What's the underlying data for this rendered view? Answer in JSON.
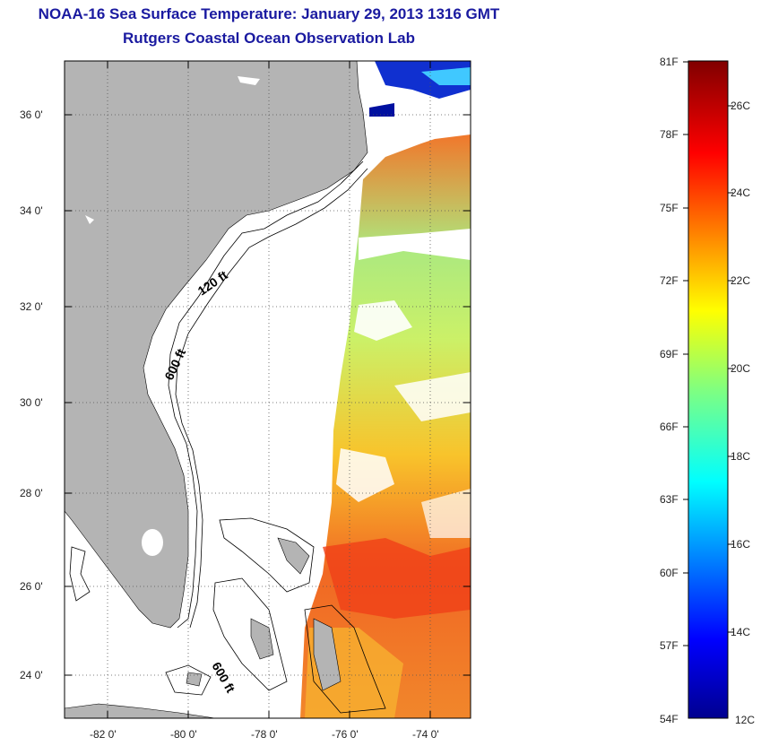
{
  "title": {
    "line1": "NOAA-16 Sea Surface Temperature:  January 29, 2013 1316 GMT",
    "line2": "Rutgers Coastal Ocean Observation Lab"
  },
  "map": {
    "lat_ticks": [
      "36 0'",
      "34 0'",
      "32 0'",
      "30 0'",
      "28 0'",
      "26 0'",
      "24 0'"
    ],
    "lon_ticks": [
      "-82 0'",
      "-80 0'",
      "-78 0'",
      "-76 0'",
      "-74 0'"
    ],
    "contour_labels": [
      "120 ft",
      "600 ft",
      "600 ft"
    ],
    "colors": {
      "land": "#b4b4b4",
      "water_missing": "#ffffff"
    }
  },
  "colorbar": {
    "fahrenheit_labels": [
      "81F",
      "78F",
      "75F",
      "72F",
      "69F",
      "66F",
      "63F",
      "60F",
      "57F",
      "54F"
    ],
    "celsius_labels": [
      "26C",
      "24C",
      "22C",
      "20C",
      "18C",
      "16C",
      "14C",
      "12C"
    ]
  }
}
